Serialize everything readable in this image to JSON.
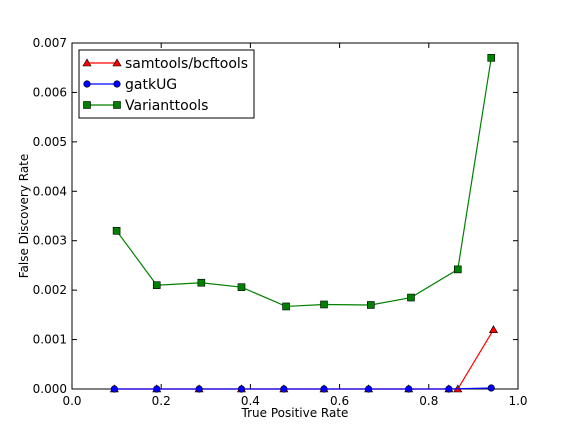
{
  "chart_data": {
    "type": "line",
    "title": "",
    "xlabel": "True Positive Rate",
    "ylabel": "False Discovery Rate",
    "xlim": [
      0.0,
      1.0
    ],
    "ylim": [
      0.0,
      0.007
    ],
    "xticks": [
      "0.0",
      "0.2",
      "0.4",
      "0.6",
      "0.8",
      "1.0"
    ],
    "yticks": [
      "0.000",
      "0.001",
      "0.002",
      "0.003",
      "0.004",
      "0.005",
      "0.006",
      "0.007"
    ],
    "legend_position": "top-left",
    "grid": false,
    "series": [
      {
        "name": "samtools/bcftools",
        "color": "#ff0000",
        "marker": "triangle",
        "x": [
          0.095,
          0.19,
          0.285,
          0.38,
          0.475,
          0.565,
          0.665,
          0.755,
          0.845,
          0.865,
          0.945
        ],
        "y": [
          0.0,
          0.0,
          0.0,
          0.0,
          0.0,
          0.0,
          0.0,
          0.0,
          0.0,
          0.0,
          0.0012
        ]
      },
      {
        "name": "gatkUG",
        "color": "#0000ff",
        "marker": "circle",
        "x": [
          0.095,
          0.19,
          0.285,
          0.38,
          0.475,
          0.565,
          0.665,
          0.755,
          0.845,
          0.94
        ],
        "y": [
          0.0,
          0.0,
          0.0,
          0.0,
          0.0,
          0.0,
          0.0,
          0.0,
          0.0,
          2e-05
        ]
      },
      {
        "name": "Varianttools",
        "color": "#008000",
        "marker": "square",
        "x": [
          0.1,
          0.19,
          0.29,
          0.38,
          0.48,
          0.565,
          0.67,
          0.76,
          0.865,
          0.94
        ],
        "y": [
          0.0032,
          0.0021,
          0.00215,
          0.00206,
          0.00167,
          0.00171,
          0.0017,
          0.00185,
          0.00242,
          0.0067
        ]
      }
    ]
  }
}
